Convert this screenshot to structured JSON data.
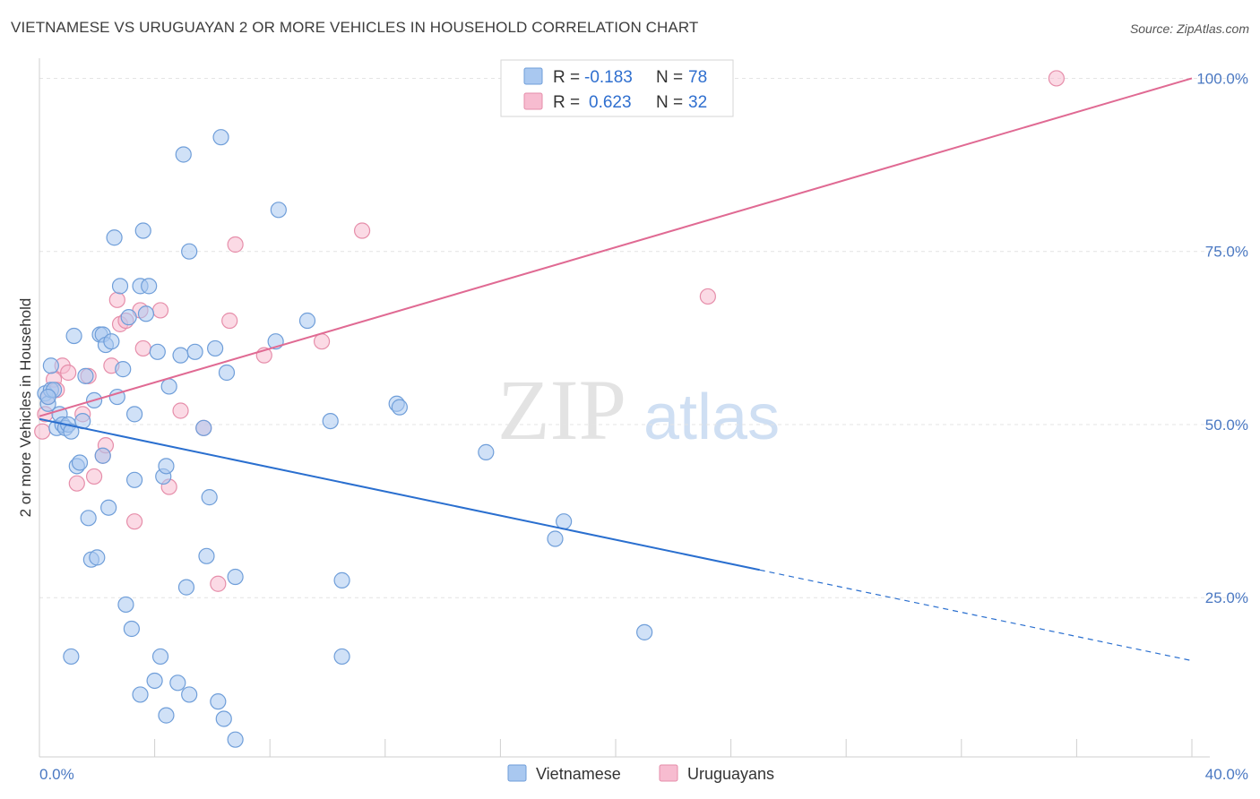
{
  "title": "VIETNAMESE VS URUGUAYAN 2 OR MORE VEHICLES IN HOUSEHOLD CORRELATION CHART",
  "source": "Source: ZipAtlas.com",
  "watermark": {
    "zip": "ZIP",
    "atlas": "atlas"
  },
  "colors": {
    "vietnamese_fill": "#a9c8f0",
    "vietnamese_stroke": "#6f9ed9",
    "vietnamese_line": "#2a6fcf",
    "uruguayan_fill": "#f7bcd0",
    "uruguayan_stroke": "#e68eaa",
    "uruguayan_line": "#e06a93"
  },
  "legend": {
    "rows": [
      {
        "r_label": "R =",
        "r_value": "-0.183",
        "n_label": "N =",
        "n_value": "78"
      },
      {
        "r_label": "R =",
        "r_value": "0.623",
        "n_label": "N =",
        "n_value": "32"
      }
    ]
  },
  "chart_data": {
    "type": "scatter",
    "title": "VIETNAMESE VS URUGUAYAN 2 OR MORE VEHICLES IN HOUSEHOLD CORRELATION CHART",
    "ylabel": "2 or more Vehicles in Household",
    "xlabel": "",
    "x_tick_labels": [
      "0.0%",
      "40.0%"
    ],
    "y_tick_labels": [
      "25.0%",
      "50.0%",
      "75.0%",
      "100.0%"
    ],
    "y_ticks": [
      25,
      50,
      75,
      100
    ],
    "xlim": [
      0,
      40
    ],
    "ylim": [
      2,
      102
    ],
    "grid": true,
    "legend_placement": "top-center",
    "series": [
      {
        "name": "Vietnamese",
        "color": "#a9c8f0",
        "r": -0.183,
        "n": 78,
        "trend": {
          "x0": 0,
          "y0": 50.8,
          "x1": 25,
          "y1": 29.0,
          "dash_to_x": 40,
          "dash_to_y": 15.9
        },
        "points": [
          [
            0.2,
            54.5
          ],
          [
            0.3,
            53.0
          ],
          [
            0.4,
            55.0
          ],
          [
            0.4,
            58.5
          ],
          [
            0.5,
            55.0
          ],
          [
            0.6,
            49.5
          ],
          [
            0.7,
            51.5
          ],
          [
            0.8,
            50.0
          ],
          [
            0.9,
            49.5
          ],
          [
            1.0,
            50.0
          ],
          [
            1.1,
            49.0
          ],
          [
            1.2,
            62.8
          ],
          [
            1.3,
            44.0
          ],
          [
            1.4,
            44.5
          ],
          [
            1.5,
            50.5
          ],
          [
            1.6,
            57.0
          ],
          [
            1.7,
            36.5
          ],
          [
            1.8,
            30.5
          ],
          [
            1.9,
            53.5
          ],
          [
            2.0,
            30.8
          ],
          [
            2.1,
            63.0
          ],
          [
            2.2,
            63.0
          ],
          [
            2.2,
            45.5
          ],
          [
            2.3,
            61.5
          ],
          [
            2.4,
            38.0
          ],
          [
            2.5,
            62.0
          ],
          [
            2.6,
            77.0
          ],
          [
            2.7,
            54.0
          ],
          [
            2.8,
            70.0
          ],
          [
            2.9,
            58.0
          ],
          [
            3.0,
            24.0
          ],
          [
            3.1,
            65.5
          ],
          [
            3.2,
            20.5
          ],
          [
            3.3,
            42.0
          ],
          [
            3.3,
            51.5
          ],
          [
            3.5,
            70.0
          ],
          [
            3.5,
            11.0
          ],
          [
            3.6,
            78.0
          ],
          [
            3.7,
            66.0
          ],
          [
            3.8,
            70.0
          ],
          [
            4.0,
            13.0
          ],
          [
            4.1,
            60.5
          ],
          [
            4.2,
            16.5
          ],
          [
            4.3,
            42.5
          ],
          [
            4.4,
            44.0
          ],
          [
            4.5,
            55.5
          ],
          [
            4.4,
            8.0
          ],
          [
            4.8,
            12.7
          ],
          [
            4.9,
            60.0
          ],
          [
            5.0,
            89.0
          ],
          [
            5.1,
            26.5
          ],
          [
            5.2,
            75.0
          ],
          [
            5.2,
            11.0
          ],
          [
            5.4,
            60.5
          ],
          [
            5.7,
            49.5
          ],
          [
            5.8,
            31.0
          ],
          [
            5.9,
            39.5
          ],
          [
            6.1,
            61.0
          ],
          [
            6.2,
            10.0
          ],
          [
            6.3,
            91.5
          ],
          [
            6.4,
            7.5
          ],
          [
            6.5,
            57.5
          ],
          [
            6.8,
            28.0
          ],
          [
            6.8,
            4.5
          ],
          [
            8.2,
            62.0
          ],
          [
            8.3,
            81.0
          ],
          [
            9.3,
            65.0
          ],
          [
            10.1,
            50.5
          ],
          [
            10.5,
            27.5
          ],
          [
            10.5,
            16.5
          ],
          [
            12.4,
            53.0
          ],
          [
            12.5,
            52.5
          ],
          [
            15.5,
            46.0
          ],
          [
            17.9,
            33.5
          ],
          [
            18.2,
            36.0
          ],
          [
            21.0,
            20.0
          ],
          [
            1.1,
            16.5
          ],
          [
            0.3,
            54.0
          ]
        ]
      },
      {
        "name": "Uruguayans",
        "color": "#f7bcd0",
        "r": 0.623,
        "n": 32,
        "trend": {
          "x0": 0,
          "y0": 51.2,
          "x1": 40,
          "y1": 100.0
        },
        "points": [
          [
            0.1,
            49.0
          ],
          [
            0.2,
            51.5
          ],
          [
            0.3,
            54.0
          ],
          [
            0.5,
            56.5
          ],
          [
            0.6,
            55.0
          ],
          [
            0.8,
            58.5
          ],
          [
            1.0,
            57.5
          ],
          [
            1.3,
            41.5
          ],
          [
            1.5,
            51.5
          ],
          [
            1.7,
            57.0
          ],
          [
            1.9,
            42.5
          ],
          [
            2.2,
            45.5
          ],
          [
            2.3,
            47.0
          ],
          [
            2.5,
            58.5
          ],
          [
            2.7,
            68.0
          ],
          [
            2.8,
            64.5
          ],
          [
            3.0,
            65.0
          ],
          [
            3.3,
            36.0
          ],
          [
            3.5,
            66.5
          ],
          [
            3.6,
            61.0
          ],
          [
            4.2,
            66.5
          ],
          [
            4.5,
            41.0
          ],
          [
            4.9,
            52.0
          ],
          [
            5.7,
            49.5
          ],
          [
            6.2,
            27.0
          ],
          [
            6.6,
            65.0
          ],
          [
            6.8,
            76.0
          ],
          [
            7.8,
            60.0
          ],
          [
            9.8,
            62.0
          ],
          [
            11.2,
            78.0
          ],
          [
            23.2,
            68.5
          ],
          [
            35.3,
            100.0
          ]
        ]
      }
    ]
  }
}
